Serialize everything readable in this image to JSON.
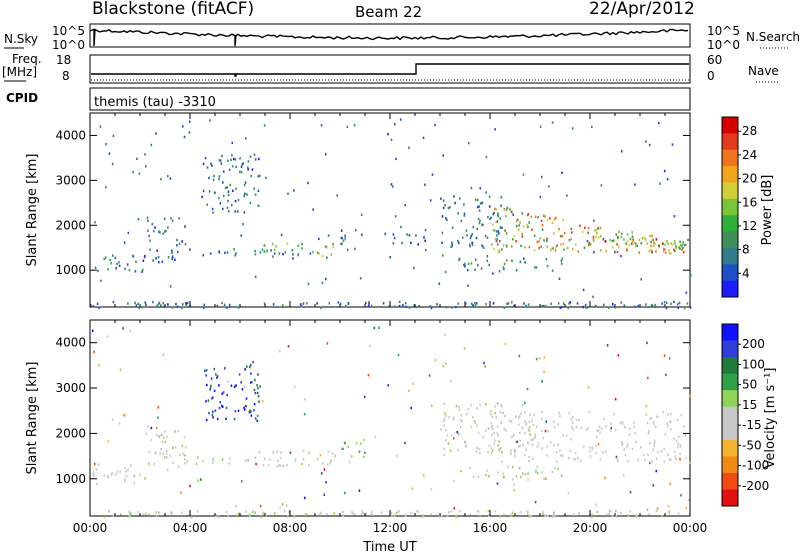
{
  "header": {
    "title": "Blackstone (fitACF)",
    "beam": "Beam 22",
    "date": "22/Apr/2012"
  },
  "noise_panel": {
    "left_label": "N.Sky",
    "left_ticks": [
      "10^5",
      "10^0"
    ],
    "right_label": "N.Search",
    "right_ticks": [
      "10^5",
      "10^0"
    ]
  },
  "freq_panel": {
    "left_label_top": "Freq.",
    "left_label_unit": "[MHz]",
    "left_ticks": [
      "18",
      "8"
    ],
    "right_label": "Nave",
    "right_ticks": [
      "60",
      "0"
    ]
  },
  "cpid": {
    "label": "CPID",
    "value": "themis (tau) -3310"
  },
  "chart_data": [
    {
      "type": "heatmap",
      "name": "power",
      "ylabel": "Slant Range [km]",
      "y_ticks": [
        "1000",
        "2000",
        "3000",
        "4000"
      ],
      "ylim": [
        180,
        4500
      ],
      "xlim": [
        0,
        24
      ],
      "colorbar_label": "Power [dB]",
      "colorbar_ticks": [
        "4",
        "8",
        "12",
        "16",
        "20",
        "24",
        "28"
      ],
      "colorbar_colors": [
        "#1c1cff",
        "#1f4fc4",
        "#2e7d8c",
        "#3f8f5a",
        "#2fae3a",
        "#7ac63a",
        "#d2ce3a",
        "#f3a51c",
        "#f0731d",
        "#e23a1f",
        "#d40000"
      ],
      "clusters": [
        {
          "t": [
            0.1,
            2.3
          ],
          "r": [
            900,
            1350
          ],
          "v": [
            4,
            14
          ]
        },
        {
          "t": [
            2.2,
            3.8
          ],
          "r": [
            1200,
            2200
          ],
          "v": [
            4,
            12
          ]
        },
        {
          "t": [
            3.8,
            7.5
          ],
          "r": [
            1350,
            1500
          ],
          "v": [
            4,
            12
          ]
        },
        {
          "t": [
            4.5,
            6.8
          ],
          "r": [
            2300,
            3600
          ],
          "v": [
            4,
            12
          ]
        },
        {
          "t": [
            6.5,
            9.8
          ],
          "r": [
            1300,
            1650
          ],
          "v": [
            8,
            20
          ]
        },
        {
          "t": [
            10.0,
            11.0
          ],
          "r": [
            1450,
            1950
          ],
          "v": [
            4,
            10
          ]
        },
        {
          "t": [
            12.0,
            13.5
          ],
          "r": [
            1600,
            1900
          ],
          "v": [
            4,
            10
          ]
        },
        {
          "t": [
            14.0,
            16.5
          ],
          "r": [
            1500,
            2700
          ],
          "v": [
            4,
            12
          ]
        },
        {
          "t": [
            14.6,
            19.0
          ],
          "r": [
            1000,
            1300
          ],
          "v": [
            4,
            14
          ]
        },
        {
          "t": [
            16.0,
            23.8
          ],
          "r": [
            1400,
            2500
          ],
          "v": [
            10,
            28
          ]
        },
        {
          "t": [
            0.0,
            24.0
          ],
          "r": [
            180,
            320
          ],
          "v": [
            4,
            12
          ]
        },
        {
          "t": [
            0.0,
            24.0
          ],
          "r": [
            300,
            4400
          ],
          "v": [
            4,
            10
          ]
        }
      ]
    },
    {
      "type": "heatmap",
      "name": "velocity",
      "xlabel": "Time UT",
      "x_ticks": [
        "00:00",
        "04:00",
        "08:00",
        "12:00",
        "16:00",
        "20:00",
        "00:00"
      ],
      "ylabel": "Slant Range [km]",
      "y_ticks": [
        "1000",
        "2000",
        "3000",
        "4000"
      ],
      "ylim": [
        180,
        4500
      ],
      "xlim": [
        0,
        24
      ],
      "colorbar_label": "Velocity [m s⁻¹]",
      "colorbar_ticks": [
        "200",
        "100",
        "50",
        "15",
        "-15",
        "-50",
        "-100",
        "-200"
      ],
      "colorbar_colors": [
        "#1010ff",
        "#2e3fd8",
        "#1f7a3c",
        "#2ea04a",
        "#8fd45a",
        "#c8c8c8",
        "#c8c8c8",
        "#f6b531",
        "#f08a14",
        "#f04a14",
        "#e01010"
      ],
      "clusters": [
        {
          "t": [
            0.1,
            2.3
          ],
          "r": [
            900,
            1350
          ],
          "v": [
            -30,
            30
          ]
        },
        {
          "t": [
            2.2,
            3.8
          ],
          "r": [
            1200,
            2200
          ],
          "v": [
            -40,
            40
          ]
        },
        {
          "t": [
            3.8,
            7.5
          ],
          "r": [
            1350,
            1500
          ],
          "v": [
            -60,
            60
          ]
        },
        {
          "t": [
            4.5,
            6.8
          ],
          "r": [
            2300,
            3600
          ],
          "v": [
            100,
            250
          ]
        },
        {
          "t": [
            6.5,
            9.8
          ],
          "r": [
            1300,
            1650
          ],
          "v": [
            -80,
            20
          ]
        },
        {
          "t": [
            10.0,
            11.0
          ],
          "r": [
            1450,
            1950
          ],
          "v": [
            20,
            80
          ]
        },
        {
          "t": [
            14.0,
            16.5
          ],
          "r": [
            1500,
            2700
          ],
          "v": [
            -30,
            40
          ]
        },
        {
          "t": [
            14.6,
            19.0
          ],
          "r": [
            1000,
            1300
          ],
          "v": [
            -20,
            50
          ]
        },
        {
          "t": [
            16.0,
            23.8
          ],
          "r": [
            1400,
            2500
          ],
          "v": [
            -14,
            14
          ]
        },
        {
          "t": [
            0.0,
            24.0
          ],
          "r": [
            180,
            320
          ],
          "v": [
            -60,
            60
          ]
        },
        {
          "t": [
            0.0,
            24.0
          ],
          "r": [
            300,
            4400
          ],
          "v": [
            -200,
            200
          ]
        }
      ]
    }
  ]
}
